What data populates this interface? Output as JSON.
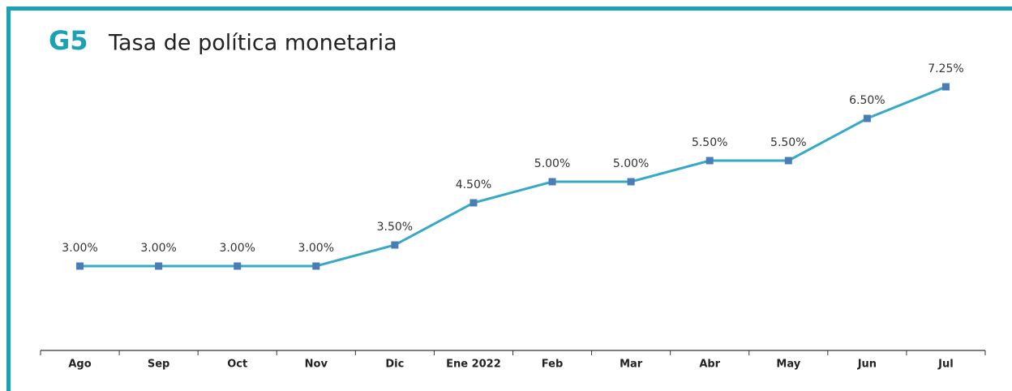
{
  "chart_data": {
    "type": "line",
    "title": "G5",
    "subtitle": "Tasa de política monetaria",
    "categories": [
      "Ago",
      "Sep",
      "Oct",
      "Nov",
      "Dic",
      "Ene 2022",
      "Feb",
      "Mar",
      "Abr",
      "May",
      "Jun",
      "Jul"
    ],
    "series": [
      {
        "name": "Tasa de política monetaria",
        "color": "#36a9c6",
        "values": [
          3.0,
          3.0,
          3.0,
          3.0,
          3.5,
          4.5,
          5.0,
          5.0,
          5.5,
          5.5,
          6.5,
          7.25
        ],
        "value_labels": [
          "3.00%",
          "3.00%",
          "3.00%",
          "3.00%",
          "3.50%",
          "4.50%",
          "5.00%",
          "5.00%",
          "5.50%",
          "5.50%",
          "6.50%",
          "7.25%"
        ]
      }
    ],
    "marker_color": "#4a7db8",
    "ylim": [
      1,
      8
    ]
  }
}
